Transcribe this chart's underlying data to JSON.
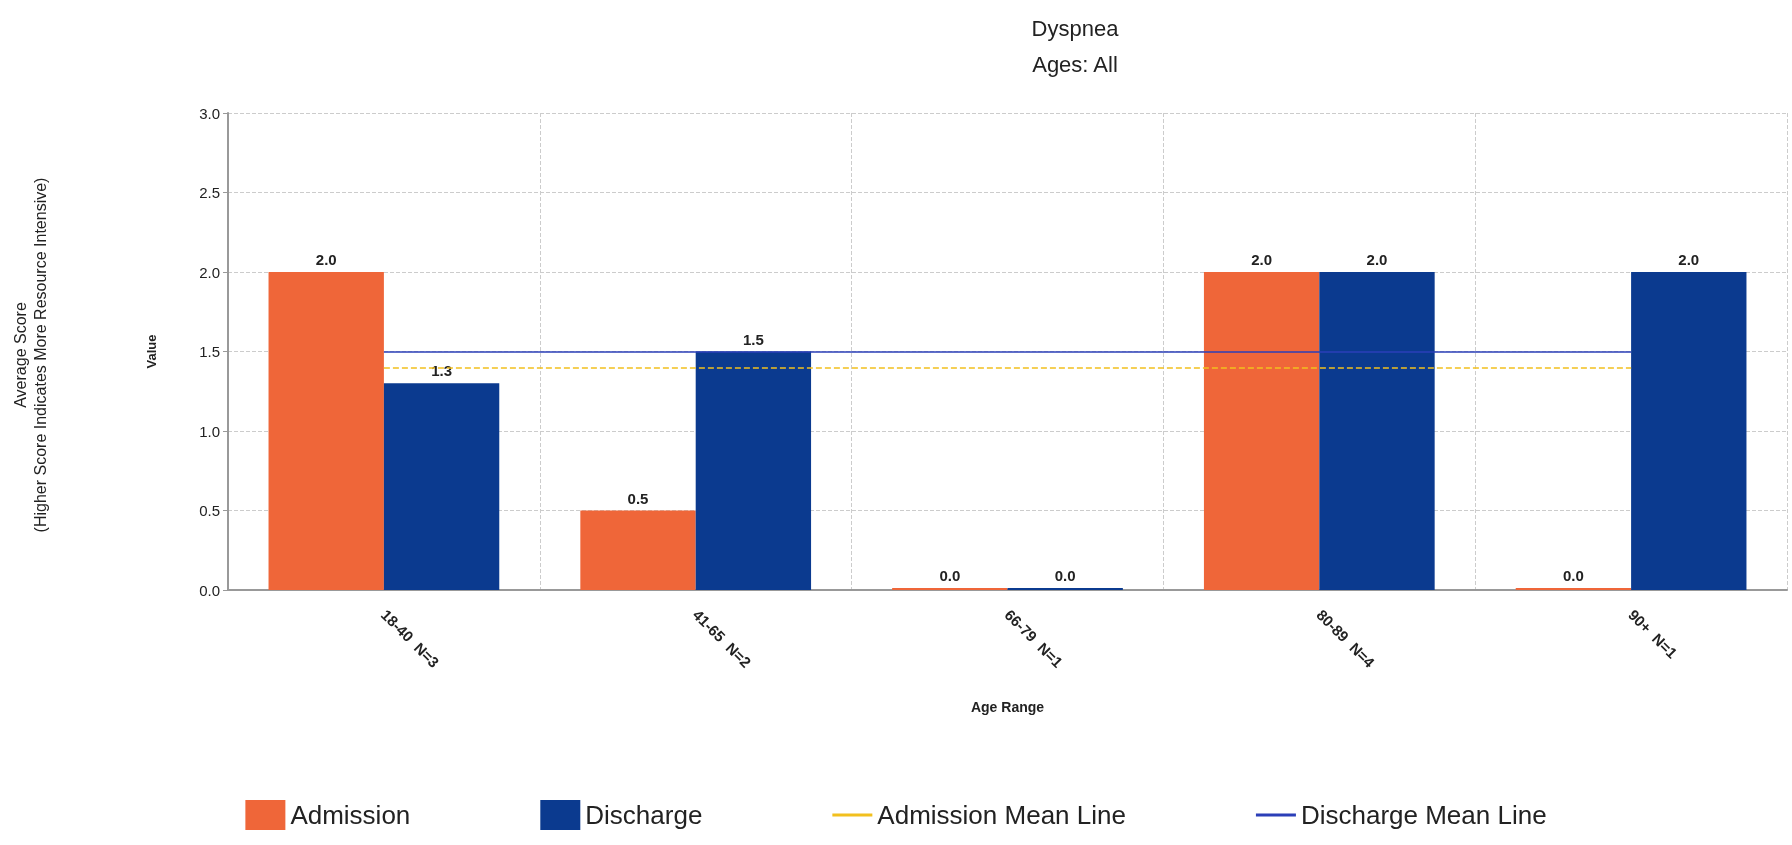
{
  "chart_data": {
    "type": "bar",
    "title": "Dyspnea",
    "subtitle": "Ages: All",
    "xlabel": "Age Range",
    "ylabel": "Value",
    "annotations": [
      "Average Score\n(Higher Score Indicates More Resource Intensive)"
    ],
    "categories": [
      "18-40  N=3",
      "41-65  N=2",
      "66-79  N=1",
      "80-89  N=4",
      "90+  N=1"
    ],
    "series": [
      {
        "name": "Admission",
        "color": "#ef6639",
        "values": [
          2.0,
          0.5,
          0.0,
          2.0,
          0.0
        ],
        "value_labels": [
          "2.0",
          "0.5",
          "0.0",
          "2.0",
          "0.0"
        ]
      },
      {
        "name": "Discharge",
        "color": "#0b3a8f",
        "values": [
          1.3,
          1.5,
          0.0,
          2.0,
          2.0
        ],
        "value_labels": [
          "1.3",
          "1.5",
          "0.0",
          "2.0",
          "2.0"
        ]
      }
    ],
    "ylim": [
      0,
      3
    ],
    "yticks": [
      {
        "value": 0,
        "label": "0.0"
      },
      {
        "value": 0.5,
        "label": "0.5"
      },
      {
        "value": 1,
        "label": "1.0"
      },
      {
        "value": 1.5,
        "label": "1.5"
      },
      {
        "value": 2,
        "label": "2.0"
      },
      {
        "value": 2.5,
        "label": "2.5"
      },
      {
        "value": 3,
        "label": "3.0"
      }
    ],
    "ref_lines": [
      {
        "axis": "y",
        "value": 1.4,
        "label": "Admission Mean Line",
        "color": "#f2c01e",
        "line_style": "dashed"
      },
      {
        "axis": "y",
        "value": 1.5,
        "label": "Discharge Mean Line",
        "color": "#2b3fb8",
        "line_style": "solid"
      }
    ],
    "grid": true,
    "legend": "bottom"
  }
}
